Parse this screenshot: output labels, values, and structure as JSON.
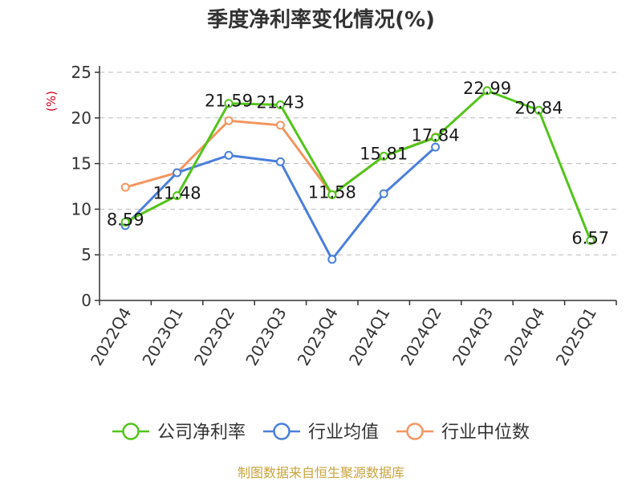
{
  "chart_data": {
    "type": "line",
    "title": "季度净利率变化情况(%)",
    "ylabel": "(%)",
    "xlabel": "",
    "ylim": [
      0,
      25
    ],
    "yticks": [
      0,
      5,
      10,
      15,
      20,
      25
    ],
    "grid": true,
    "legend_position": "bottom",
    "categories": [
      "2022Q4",
      "2023Q1",
      "2023Q2",
      "2023Q3",
      "2023Q4",
      "2024Q1",
      "2024Q2",
      "2024Q3",
      "2024Q4",
      "2025Q1"
    ],
    "series": [
      {
        "name": "公司净利率",
        "color": "#52c41a",
        "values": [
          8.59,
          11.48,
          21.59,
          21.43,
          11.58,
          15.81,
          17.84,
          22.99,
          20.84,
          6.57
        ],
        "labels": [
          "8.59",
          "11.48",
          "21.59",
          "21.43",
          "11.58",
          "15.81",
          "17.84",
          "22.99",
          "20.84",
          "6.57"
        ]
      },
      {
        "name": "行业均值",
        "color": "#4a7fdb",
        "values": [
          8.2,
          14.0,
          15.9,
          15.2,
          4.5,
          11.7,
          16.8,
          null,
          null,
          null
        ]
      },
      {
        "name": "行业中位数",
        "color": "#f39660",
        "values": [
          12.4,
          14.0,
          19.7,
          19.2,
          11.6,
          15.8,
          17.9,
          null,
          null,
          null
        ]
      }
    ],
    "draw_order": [
      2,
      1,
      0
    ],
    "ylabel_color": "#d4001a"
  },
  "source_text": "制图数据来自恒生聚源数据库",
  "source_color": "#c9a43b"
}
